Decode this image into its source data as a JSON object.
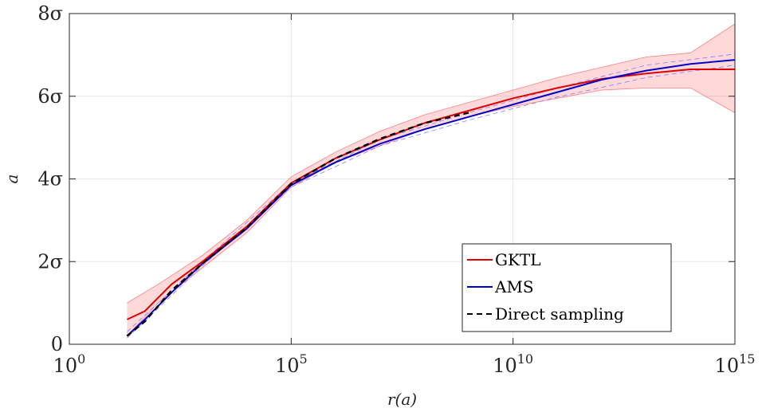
{
  "chart_data": {
    "type": "line",
    "title": "",
    "xlabel": "r(a)",
    "ylabel": "a",
    "x_scale": "log",
    "xlim": [
      1,
      1000000000000000.0
    ],
    "ylim": [
      0,
      8
    ],
    "grid": true,
    "legend_position": "bottom-right",
    "x_ticks": [
      {
        "value": 1,
        "base": "10",
        "exp": "0"
      },
      {
        "value": 100000.0,
        "base": "10",
        "exp": "5"
      },
      {
        "value": 10000000000.0,
        "base": "10",
        "exp": "10"
      },
      {
        "value": 1000000000000000.0,
        "base": "10",
        "exp": "15"
      }
    ],
    "y_ticks": [
      {
        "value": 0,
        "label": "0"
      },
      {
        "value": 2,
        "label": "2σ"
      },
      {
        "value": 4,
        "label": "4σ"
      },
      {
        "value": 6,
        "label": "6σ"
      },
      {
        "value": 8,
        "label": "8σ"
      }
    ],
    "series": [
      {
        "name": "GKTL",
        "color": "#e00000",
        "style": "solid",
        "points": [
          [
            20,
            0.6
          ],
          [
            50,
            0.8
          ],
          [
            200,
            1.45
          ],
          [
            1000,
            2.0
          ],
          [
            10000,
            2.85
          ],
          [
            100000,
            3.9
          ],
          [
            1000000,
            4.5
          ],
          [
            10000000,
            4.95
          ],
          [
            100000000,
            5.35
          ],
          [
            1000000000,
            5.65
          ],
          [
            10000000000,
            5.95
          ],
          [
            100000000000,
            6.2
          ],
          [
            1000000000000,
            6.42
          ],
          [
            10000000000000,
            6.55
          ],
          [
            100000000000000,
            6.65
          ],
          [
            1000000000000000,
            6.65
          ]
        ],
        "band_upper": [
          [
            20,
            1.0
          ],
          [
            100,
            1.45
          ],
          [
            1000,
            2.15
          ],
          [
            10000,
            3.0
          ],
          [
            100000,
            4.05
          ],
          [
            1000000,
            4.65
          ],
          [
            10000000,
            5.15
          ],
          [
            100000000,
            5.55
          ],
          [
            1000000000,
            5.85
          ],
          [
            10000000000,
            6.15
          ],
          [
            100000000000,
            6.45
          ],
          [
            1000000000000,
            6.7
          ],
          [
            10000000000000,
            6.95
          ],
          [
            100000000000000,
            7.05
          ],
          [
            1000000000000000,
            7.75
          ]
        ],
        "band_lower": [
          [
            20,
            0.2
          ],
          [
            100,
            1.0
          ],
          [
            1000,
            1.85
          ],
          [
            10000,
            2.7
          ],
          [
            100000,
            3.8
          ],
          [
            1000000,
            4.4
          ],
          [
            10000000,
            4.8
          ],
          [
            100000000,
            5.2
          ],
          [
            1000000000,
            5.5
          ],
          [
            10000000000,
            5.75
          ],
          [
            100000000000,
            5.95
          ],
          [
            1000000000000,
            6.15
          ],
          [
            10000000000000,
            6.2
          ],
          [
            100000000000000,
            6.2
          ],
          [
            1000000000000000,
            5.6
          ]
        ]
      },
      {
        "name": "AMS",
        "color": "#0000cc",
        "style": "solid",
        "points": [
          [
            20,
            0.2
          ],
          [
            50,
            0.6
          ],
          [
            200,
            1.25
          ],
          [
            1000,
            1.95
          ],
          [
            10000,
            2.8
          ],
          [
            100000,
            3.85
          ],
          [
            1000000,
            4.4
          ],
          [
            10000000,
            4.85
          ],
          [
            100000000,
            5.2
          ],
          [
            1000000000,
            5.5
          ],
          [
            10000000000,
            5.8
          ],
          [
            100000000000,
            6.1
          ],
          [
            1000000000000,
            6.4
          ],
          [
            10000000000000,
            6.62
          ],
          [
            100000000000000,
            6.78
          ],
          [
            1000000000000000,
            6.88
          ]
        ],
        "band_upper": [
          [
            20,
            0.3
          ],
          [
            1000,
            2.0
          ],
          [
            100000,
            3.9
          ],
          [
            10000000,
            4.95
          ],
          [
            1000000000,
            5.6
          ],
          [
            100000000000,
            6.2
          ],
          [
            10000000000000,
            6.75
          ],
          [
            1000000000000000,
            7.02
          ]
        ],
        "band_lower": [
          [
            20,
            0.15
          ],
          [
            1000,
            1.9
          ],
          [
            100000,
            3.8
          ],
          [
            10000000,
            4.8
          ],
          [
            1000000000,
            5.42
          ],
          [
            100000000000,
            5.98
          ],
          [
            10000000000000,
            6.45
          ],
          [
            1000000000000000,
            6.75
          ]
        ]
      },
      {
        "name": "Direct sampling",
        "color": "#000000",
        "style": "dashed",
        "points": [
          [
            20,
            0.2
          ],
          [
            50,
            0.55
          ],
          [
            200,
            1.3
          ],
          [
            1000,
            1.95
          ],
          [
            10000,
            2.82
          ],
          [
            100000,
            3.88
          ],
          [
            1000000,
            4.5
          ],
          [
            10000000,
            4.97
          ],
          [
            100000000,
            5.35
          ],
          [
            1000000000,
            5.6
          ]
        ]
      }
    ]
  }
}
